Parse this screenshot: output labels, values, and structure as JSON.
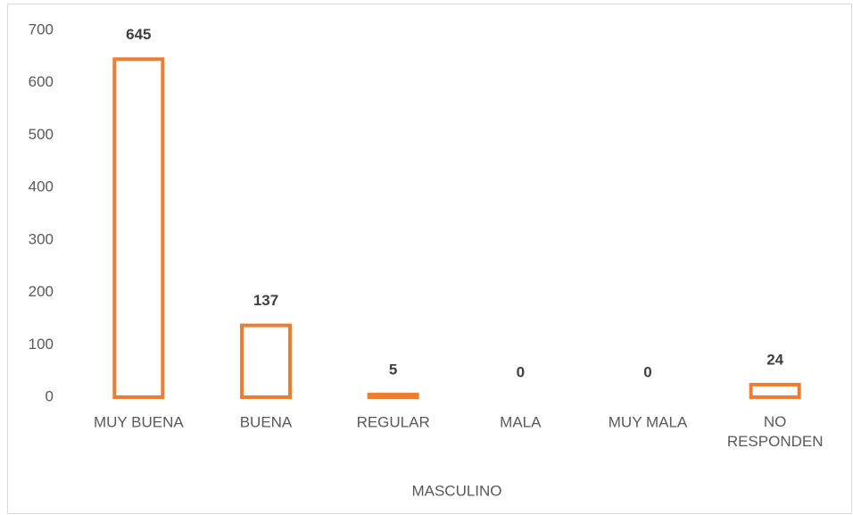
{
  "chart_data": {
    "type": "bar",
    "categories": [
      "MUY BUENA",
      "BUENA",
      "REGULAR",
      "MALA",
      "MUY MALA",
      "NO RESPONDEN"
    ],
    "values": [
      645,
      137,
      5,
      0,
      0,
      24
    ],
    "color": "#ed7d31",
    "x_label": "MASCULINO",
    "ylim": [
      0,
      700
    ],
    "yticks": [
      0,
      100,
      200,
      300,
      400,
      500,
      600,
      700
    ],
    "grid": false
  }
}
